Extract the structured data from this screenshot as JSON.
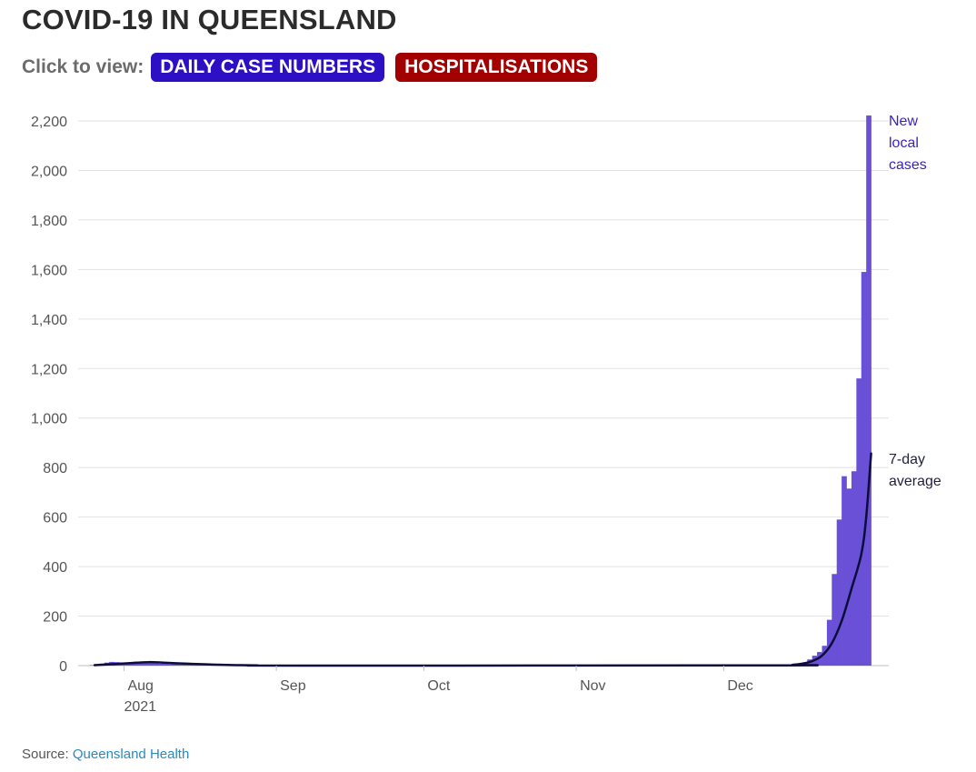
{
  "title": "COVID-19 IN QUEENSLAND",
  "toggle": {
    "label": "Click to view:",
    "buttons": [
      {
        "label": "DAILY CASE NUMBERS",
        "color": "#2e10c4"
      },
      {
        "label": "HOSPITALISATIONS",
        "color": "#a30000"
      }
    ]
  },
  "source": {
    "prefix": "Source:",
    "link": "Queensland Health"
  },
  "colors": {
    "bars": "#6a50d6",
    "line": "#0d0d3a",
    "grid": "#e2e2e2",
    "bars_label": "#3a22c8",
    "line_label": "#222244"
  },
  "chart_data": {
    "type": "bar",
    "ylim": [
      0,
      2200
    ],
    "yticks": [
      0,
      200,
      400,
      600,
      800,
      1000,
      1200,
      1400,
      1600,
      1800,
      2000,
      2200
    ],
    "ytick_labels": [
      "0",
      "200",
      "400",
      "600",
      "800",
      "1,000",
      "1,200",
      "1,400",
      "1,600",
      "1,800",
      "2,000",
      "2,200"
    ],
    "x_start": "2021-07-26",
    "x_end": "2022-01-01",
    "xticks": [
      {
        "date": "2021-08-01",
        "label": "Aug",
        "sublabel": "2021"
      },
      {
        "date": "2021-09-01",
        "label": "Sep",
        "sublabel": ""
      },
      {
        "date": "2021-10-01",
        "label": "Oct",
        "sublabel": ""
      },
      {
        "date": "2021-11-01",
        "label": "Nov",
        "sublabel": ""
      },
      {
        "date": "2021-12-01",
        "label": "Dec",
        "sublabel": ""
      }
    ],
    "grid": true,
    "series": [
      {
        "name": "New local cases",
        "kind": "bar",
        "points": [
          [
            "2021-07-26",
            2
          ],
          [
            "2021-07-27",
            5
          ],
          [
            "2021-07-28",
            8
          ],
          [
            "2021-07-29",
            12
          ],
          [
            "2021-07-30",
            15
          ],
          [
            "2021-07-31",
            14
          ],
          [
            "2021-08-01",
            13
          ],
          [
            "2021-08-02",
            12
          ],
          [
            "2021-08-03",
            14
          ],
          [
            "2021-08-04",
            16
          ],
          [
            "2021-08-05",
            15
          ],
          [
            "2021-08-06",
            13
          ],
          [
            "2021-08-07",
            11
          ],
          [
            "2021-08-08",
            9
          ],
          [
            "2021-08-09",
            8
          ],
          [
            "2021-08-10",
            7
          ],
          [
            "2021-08-11",
            6
          ],
          [
            "2021-08-12",
            6
          ],
          [
            "2021-08-13",
            5
          ],
          [
            "2021-08-14",
            5
          ],
          [
            "2021-08-15",
            4
          ],
          [
            "2021-08-16",
            3
          ],
          [
            "2021-08-17",
            3
          ],
          [
            "2021-08-18",
            2
          ],
          [
            "2021-08-19",
            2
          ],
          [
            "2021-08-20",
            1
          ],
          [
            "2021-08-21",
            1
          ],
          [
            "2021-08-22",
            0
          ],
          [
            "2021-08-23",
            1
          ],
          [
            "2021-08-24",
            0
          ],
          [
            "2021-09-15",
            1
          ],
          [
            "2021-09-20",
            1
          ],
          [
            "2021-09-28",
            1
          ],
          [
            "2021-10-05",
            1
          ],
          [
            "2021-10-12",
            1
          ],
          [
            "2021-10-20",
            1
          ],
          [
            "2021-11-08",
            1
          ],
          [
            "2021-11-20",
            1
          ],
          [
            "2021-12-05",
            1
          ],
          [
            "2021-12-10",
            1
          ],
          [
            "2021-12-13",
            2
          ],
          [
            "2021-12-15",
            3
          ],
          [
            "2021-12-16",
            5
          ],
          [
            "2021-12-17",
            8
          ],
          [
            "2021-12-18",
            12
          ],
          [
            "2021-12-19",
            25
          ],
          [
            "2021-12-20",
            40
          ],
          [
            "2021-12-21",
            55
          ],
          [
            "2021-12-22",
            80
          ],
          [
            "2021-12-23",
            185
          ],
          [
            "2021-12-24",
            370
          ],
          [
            "2021-12-25",
            590
          ],
          [
            "2021-12-26",
            765
          ],
          [
            "2021-12-27",
            715
          ],
          [
            "2021-12-28",
            785
          ],
          [
            "2021-12-29",
            1160
          ],
          [
            "2021-12-30",
            1590
          ],
          [
            "2021-12-31",
            2222
          ]
        ]
      },
      {
        "name": "7-day average",
        "kind": "line",
        "points": [
          [
            "2021-07-26",
            2
          ],
          [
            "2021-07-30",
            6
          ],
          [
            "2021-08-03",
            11
          ],
          [
            "2021-08-06",
            14
          ],
          [
            "2021-08-09",
            12
          ],
          [
            "2021-08-12",
            9
          ],
          [
            "2021-08-15",
            7
          ],
          [
            "2021-08-18",
            5
          ],
          [
            "2021-08-21",
            3
          ],
          [
            "2021-08-24",
            2
          ],
          [
            "2021-08-28",
            1
          ],
          [
            "2021-09-05",
            0
          ],
          [
            "2021-12-12",
            1
          ],
          [
            "2021-12-15",
            3
          ],
          [
            "2021-12-17",
            8
          ],
          [
            "2021-12-19",
            18
          ],
          [
            "2021-12-21",
            40
          ],
          [
            "2021-12-23",
            90
          ],
          [
            "2021-12-25",
            180
          ],
          [
            "2021-12-27",
            310
          ],
          [
            "2021-12-29",
            450
          ],
          [
            "2021-12-30",
            600
          ],
          [
            "2021-12-31",
            857
          ]
        ]
      }
    ],
    "annotations": [
      {
        "series": "New local cases",
        "lines": [
          "New",
          "local",
          "cases"
        ]
      },
      {
        "series": "7-day average",
        "lines": [
          "7-day",
          "average"
        ]
      }
    ]
  }
}
